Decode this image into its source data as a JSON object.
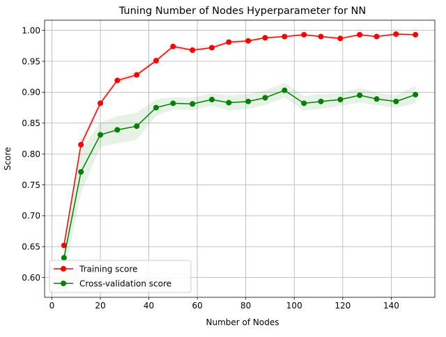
{
  "chart_data": {
    "type": "line",
    "title": "Tuning Number of Nodes Hyperparameter for NN",
    "xlabel": "Number of Nodes",
    "ylabel": "Score",
    "xlim": [
      -3,
      158
    ],
    "ylim": [
      0.568,
      1.0165
    ],
    "grid": true,
    "legend_position": "lower-left",
    "xticks": [
      0,
      20,
      40,
      60,
      80,
      100,
      120,
      140
    ],
    "xtick_labels": [
      "0",
      "20",
      "40",
      "60",
      "80",
      "100",
      "120",
      "140"
    ],
    "yticks": [
      0.6,
      0.65,
      0.7,
      0.75,
      0.8,
      0.85,
      0.9,
      0.95,
      1.0
    ],
    "ytick_labels": [
      "0.60",
      "0.65",
      "0.70",
      "0.75",
      "0.80",
      "0.85",
      "0.90",
      "0.95",
      "1.00"
    ],
    "x": [
      5,
      12,
      20,
      27,
      35,
      43,
      50,
      58,
      66,
      73,
      81,
      88,
      96,
      104,
      111,
      119,
      127,
      134,
      142,
      150
    ],
    "series": [
      {
        "name": "Training score",
        "color": "#ff0000",
        "values": [
          0.652,
          0.815,
          0.882,
          0.919,
          0.928,
          0.951,
          0.974,
          0.968,
          0.972,
          0.981,
          0.983,
          0.988,
          0.99,
          0.993,
          0.99,
          0.987,
          0.993,
          0.99,
          0.994,
          0.993
        ],
        "band": [
          0.004,
          0.008,
          0.004,
          0.004,
          0.004,
          0.003,
          0.004,
          0.003,
          0.003,
          0.003,
          0.003,
          0.002,
          0.002,
          0.002,
          0.002,
          0.002,
          0.002,
          0.002,
          0.002,
          0.002
        ]
      },
      {
        "name": "Cross-validation score",
        "color": "#008000",
        "values": [
          0.632,
          0.771,
          0.831,
          0.839,
          0.845,
          0.875,
          0.882,
          0.881,
          0.888,
          0.883,
          0.885,
          0.891,
          0.903,
          0.882,
          0.885,
          0.888,
          0.895,
          0.889,
          0.885,
          0.896
        ],
        "band": [
          0.03,
          0.034,
          0.02,
          0.022,
          0.022,
          0.013,
          0.01,
          0.01,
          0.01,
          0.012,
          0.012,
          0.012,
          0.012,
          0.012,
          0.012,
          0.01,
          0.012,
          0.01,
          0.01,
          0.014
        ]
      }
    ]
  }
}
